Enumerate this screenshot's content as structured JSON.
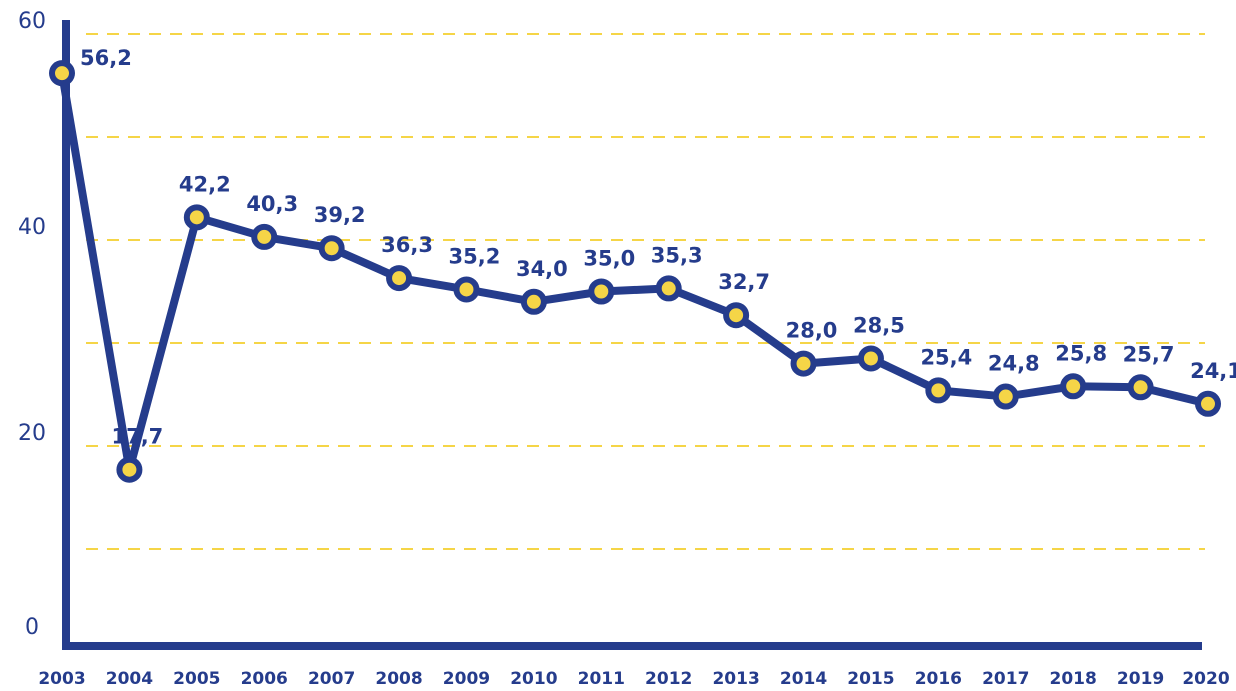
{
  "chart_data": {
    "type": "line",
    "categories": [
      "2003",
      "2004",
      "2005",
      "2006",
      "2007",
      "2008",
      "2009",
      "2010",
      "2011",
      "2012",
      "2013",
      "2014",
      "2015",
      "2016",
      "2017",
      "2018",
      "2019",
      "2020"
    ],
    "series": [
      {
        "color": "#253c8c",
        "values": [
          56.2,
          17.7,
          42.2,
          40.3,
          39.2,
          36.3,
          35.2,
          34.0,
          35.0,
          35.3,
          32.7,
          28.0,
          28.5,
          25.4,
          24.8,
          25.8,
          25.7,
          24.1
        ],
        "value_labels": [
          "56,2",
          "17,7",
          "42,2",
          "40,3",
          "39,2",
          "36,3",
          "35,2",
          "34,0",
          "35,0",
          "35,3",
          "32,7",
          "28,0",
          "28,5",
          "25,4",
          "24,8",
          "25,8",
          "25,7",
          "24,1"
        ]
      }
    ],
    "marker_color": "#f5d547",
    "grid_color": "#f5d547",
    "ylim": [
      0,
      60
    ],
    "yticks": [
      0,
      20,
      40,
      60
    ],
    "minor_yticks": [
      10,
      30,
      50
    ],
    "grid": true
  }
}
